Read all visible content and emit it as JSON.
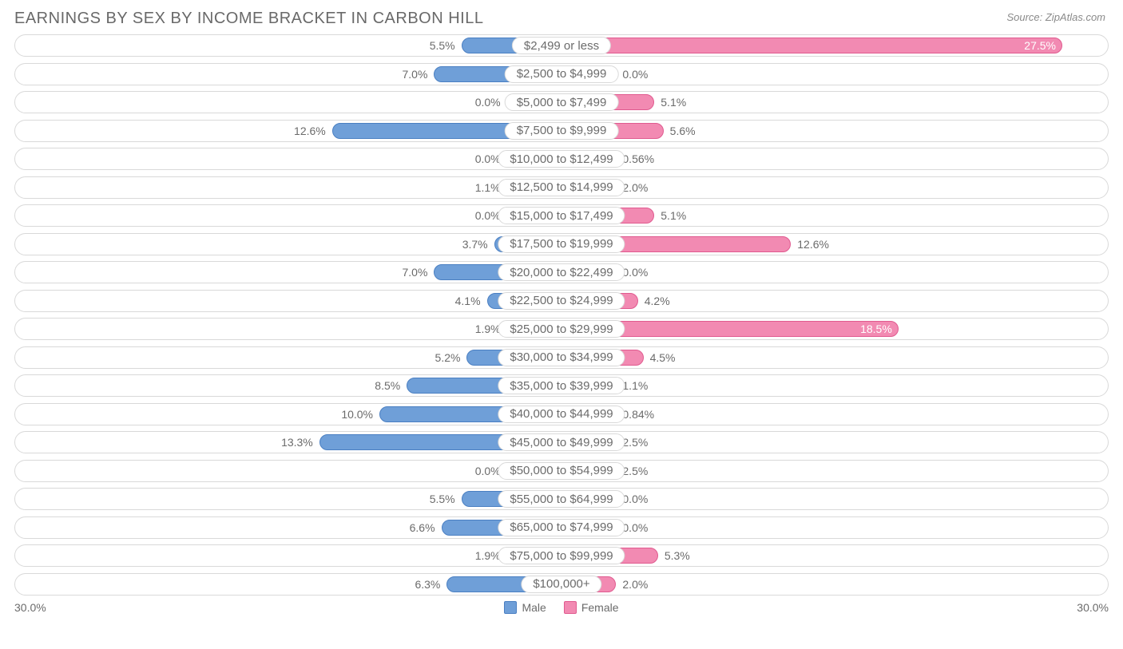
{
  "title": "EARNINGS BY SEX BY INCOME BRACKET IN CARBON HILL",
  "source": "Source: ZipAtlas.com",
  "axis_max": 30.0,
  "axis_label_left": "30.0%",
  "axis_label_right": "30.0%",
  "colors": {
    "male_fill": "#6f9fd8",
    "male_border": "#4a7fc2",
    "female_fill": "#f28ab2",
    "female_border": "#e05a8f",
    "text": "#6b6b6b",
    "row_border": "#d9d9d9",
    "background": "#ffffff"
  },
  "legend": {
    "male": "Male",
    "female": "Female"
  },
  "bar_min_width_pct": 10.0,
  "rows": [
    {
      "label": "$2,499 or less",
      "male": 5.5,
      "female": 27.5,
      "female_inside": true
    },
    {
      "label": "$2,500 to $4,999",
      "male": 7.0,
      "female": 0.0
    },
    {
      "label": "$5,000 to $7,499",
      "male": 0.0,
      "female": 5.1
    },
    {
      "label": "$7,500 to $9,999",
      "male": 12.6,
      "female": 5.6
    },
    {
      "label": "$10,000 to $12,499",
      "male": 0.0,
      "female": 0.56
    },
    {
      "label": "$12,500 to $14,999",
      "male": 1.1,
      "female": 2.0
    },
    {
      "label": "$15,000 to $17,499",
      "male": 0.0,
      "female": 5.1
    },
    {
      "label": "$17,500 to $19,999",
      "male": 3.7,
      "female": 12.6
    },
    {
      "label": "$20,000 to $22,499",
      "male": 7.0,
      "female": 0.0
    },
    {
      "label": "$22,500 to $24,999",
      "male": 4.1,
      "female": 4.2
    },
    {
      "label": "$25,000 to $29,999",
      "male": 1.9,
      "female": 18.5,
      "female_inside": true
    },
    {
      "label": "$30,000 to $34,999",
      "male": 5.2,
      "female": 4.5
    },
    {
      "label": "$35,000 to $39,999",
      "male": 8.5,
      "female": 1.1
    },
    {
      "label": "$40,000 to $44,999",
      "male": 10.0,
      "female": 0.84
    },
    {
      "label": "$45,000 to $49,999",
      "male": 13.3,
      "female": 2.5
    },
    {
      "label": "$50,000 to $54,999",
      "male": 0.0,
      "female": 2.5
    },
    {
      "label": "$55,000 to $64,999",
      "male": 5.5,
      "female": 0.0
    },
    {
      "label": "$65,000 to $74,999",
      "male": 6.6,
      "female": 0.0
    },
    {
      "label": "$75,000 to $99,999",
      "male": 1.9,
      "female": 5.3
    },
    {
      "label": "$100,000+",
      "male": 6.3,
      "female": 2.0
    }
  ]
}
